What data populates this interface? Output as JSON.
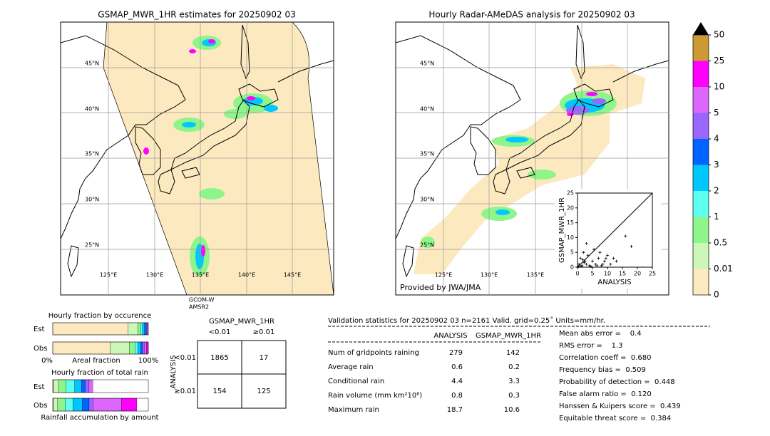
{
  "left_map": {
    "title": "GSMAP_MWR_1HR estimates for 20250902 03",
    "lat_labels": [
      "45°N",
      "40°N",
      "35°N",
      "30°N",
      "25°N"
    ],
    "lon_labels": [
      "125°E",
      "130°E",
      "135°E",
      "140°E",
      "145°E"
    ],
    "satellite": "GCOM-W",
    "sensor": "AMSR2"
  },
  "right_map": {
    "title": "Hourly Radar-AMeDAS analysis for 20250902 03",
    "lat_labels": [
      "45°N",
      "40°N",
      "35°N",
      "30°N",
      "25°N"
    ],
    "lon_labels": [
      "125°E",
      "130°E",
      "135°E"
    ],
    "credit": "Provided by JWA/JMA"
  },
  "chart_data": {
    "type": "scatter",
    "xlabel": "ANALYSIS",
    "ylabel": "GSMAP_MWR_1HR",
    "xlim": [
      0,
      25
    ],
    "ylim": [
      0,
      25
    ],
    "xticks": [
      0,
      5,
      10,
      15,
      20,
      25
    ],
    "yticks": [
      0,
      5,
      10,
      15,
      20,
      25
    ],
    "color": "#000000",
    "x": [
      0.5,
      1,
      1.5,
      2,
      2.5,
      3,
      3.5,
      4,
      5,
      5.5,
      6,
      7,
      7.5,
      8,
      9,
      10,
      11,
      12,
      13,
      16,
      18,
      0.3,
      1.2,
      2.2,
      4.5,
      6.5,
      8.5,
      3,
      9.5,
      1.8
    ],
    "y": [
      1,
      3,
      0.5,
      5,
      2,
      1,
      4,
      0.5,
      2,
      6,
      1,
      3,
      5,
      0.5,
      2,
      4,
      1,
      3,
      2,
      10.5,
      7,
      0.2,
      0.3,
      1.5,
      0.2,
      0.5,
      1,
      8,
      3,
      2.5
    ]
  },
  "colorbar": {
    "labels": [
      "0",
      "0.01",
      "0.5",
      "1",
      "2",
      "3",
      "4",
      "5",
      "10",
      "25",
      "50"
    ],
    "colors": [
      "#fde9c0",
      "#ccf7b8",
      "#8ef58a",
      "#5ffff0",
      "#00c8ff",
      "#0064ff",
      "#9966ff",
      "#dd66ff",
      "#ff00ff",
      "#cc9933"
    ],
    "extend_color": "#000000"
  },
  "occurrence": {
    "title": "Hourly fraction by occurence",
    "rows": [
      "Est",
      "Obs"
    ],
    "axis_labels": [
      "0%",
      "Areal fraction",
      "100%"
    ],
    "est": [
      0.79,
      0.1,
      0.03,
      0.02,
      0.02,
      0.02,
      0.01,
      0.01,
      0,
      0
    ],
    "obs": [
      0.6,
      0.2,
      0.06,
      0.03,
      0.03,
      0.02,
      0.02,
      0.02,
      0.02,
      0
    ]
  },
  "total_rain": {
    "title": "Hourly fraction of total rain",
    "rows": [
      "Est",
      "Obs"
    ],
    "caption": "Rainfall accumulation by amount",
    "est": [
      0.01,
      0.05,
      0.08,
      0.09,
      0.07,
      0.04,
      0.04,
      0.04,
      0,
      0
    ],
    "obs": [
      0.01,
      0.04,
      0.08,
      0.08,
      0.1,
      0.07,
      0.04,
      0.3,
      0.16,
      0
    ]
  },
  "contingency": {
    "title": "GSMAP_MWR_1HR",
    "columns": [
      "<0.01",
      "≥0.01"
    ],
    "row_title": "ANALYSIS",
    "rows": [
      "<0.01",
      "≥0.01"
    ],
    "cells": [
      [
        "1865",
        "17"
      ],
      [
        "154",
        "125"
      ]
    ]
  },
  "validation": {
    "header": "Validation statistics for 20250902 03  n=2161 Valid. grid=0.25˚ Units=mm/hr.",
    "columns": [
      "ANALYSIS",
      "GSMAP_MWR_1HR"
    ],
    "rows": [
      [
        "Num of gridpoints raining",
        "279",
        "142"
      ],
      [
        "Average rain",
        "0.6",
        "0.2"
      ],
      [
        "Conditional rain",
        "4.4",
        "3.3"
      ],
      [
        "Rain volume (mm km²10⁶)",
        "0.8",
        "0.3"
      ],
      [
        "Maximum rain",
        "18.7",
        "10.6"
      ]
    ],
    "scores": [
      "Mean abs error =    0.4",
      "RMS error =    1.3",
      "Correlation coeff =  0.680",
      "Frequency bias =  0.509",
      "Probability of detection =  0.448",
      "False alarm ratio =  0.120",
      "Hanssen & Kuipers score =  0.439",
      "Equitable threat score =  0.384"
    ]
  }
}
